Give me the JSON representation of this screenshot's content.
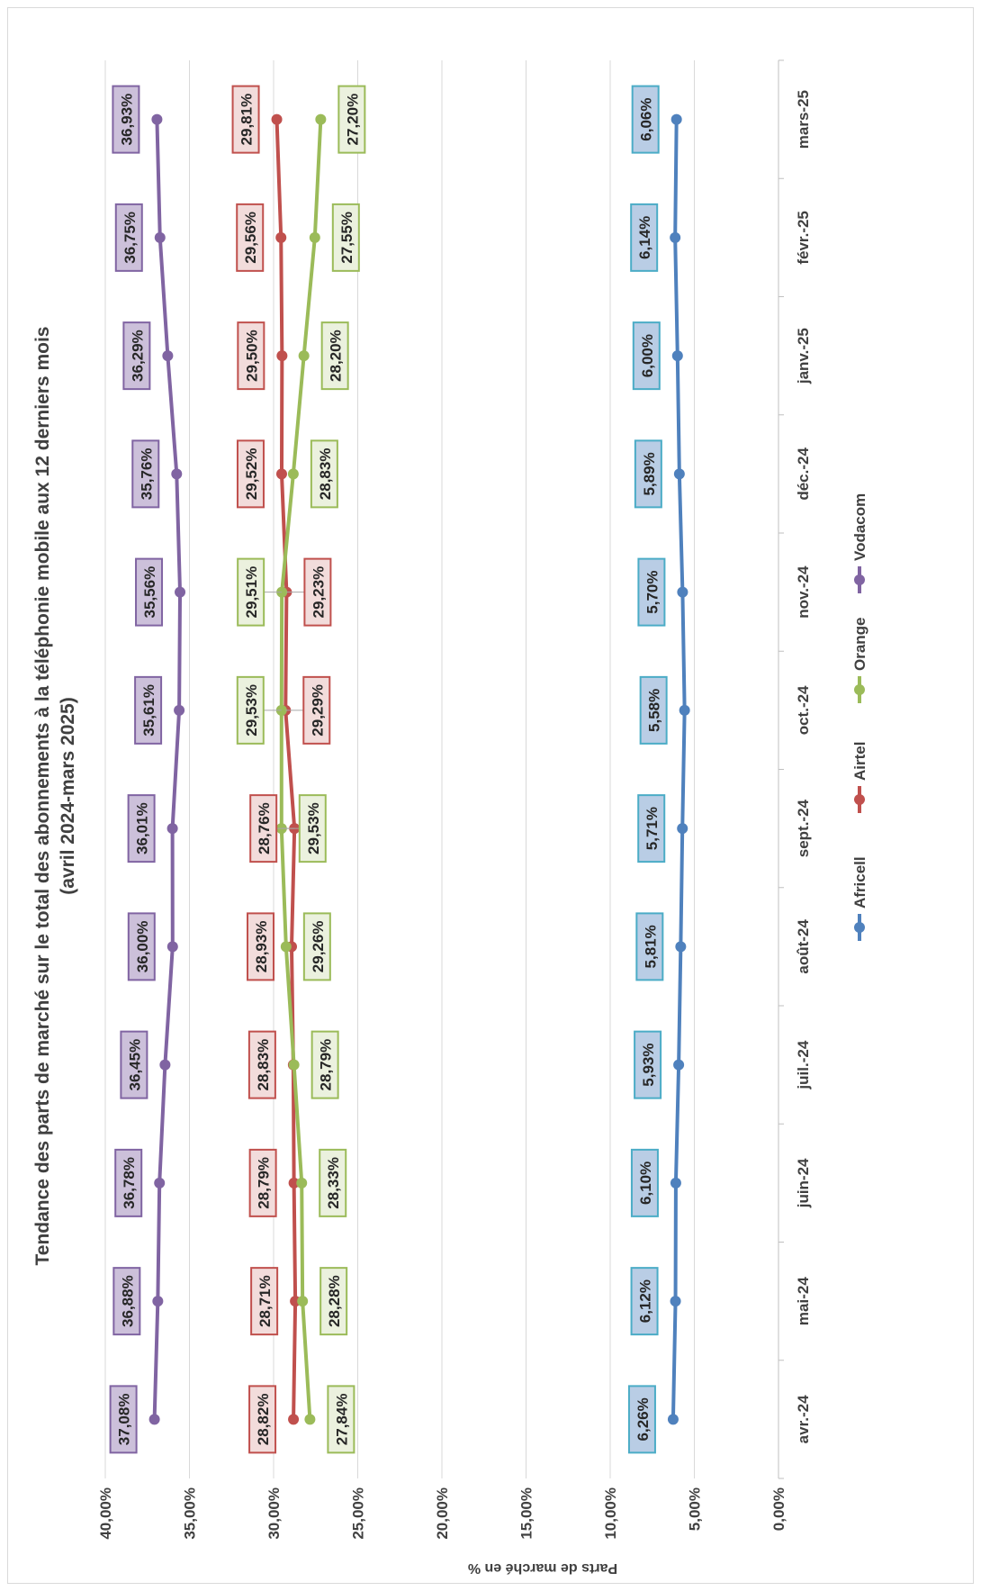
{
  "chart_data": {
    "type": "line",
    "title": "Tendance des parts de marché sur le total des abonnements à la téléphonie mobile aux 12 derniers mois",
    "subtitle": "(avril 2024-mars 2025)",
    "ylabel": "Parts de marché en %",
    "xlabel": "",
    "ylim": [
      0,
      40
    ],
    "y_ticks": [
      "0,00%",
      "5,00%",
      "10,00%",
      "15,00%",
      "20,00%",
      "25,00%",
      "30,00%",
      "35,00%",
      "40,00%"
    ],
    "grid": true,
    "legend": "bottom",
    "categories": [
      "avr.-24",
      "mai-24",
      "juin-24",
      "juil.-24",
      "août-24",
      "sept.-24",
      "oct.-24",
      "nov.-24",
      "déc.-24",
      "janv.-25",
      "févr.-25",
      "mars-25"
    ],
    "series": [
      {
        "name": "Africell",
        "color": "#4F81BD",
        "label_fill": "#B9CDE5",
        "label_border": "#4BACC6",
        "values": [
          6.26,
          6.12,
          6.1,
          5.93,
          5.81,
          5.71,
          5.58,
          5.7,
          5.89,
          6.0,
          6.14,
          6.06
        ],
        "labels": [
          "6,26%",
          "6,12%",
          "6,10%",
          "5,93%",
          "5,81%",
          "5,71%",
          "5,58%",
          "5,70%",
          "5,89%",
          "6,00%",
          "6,14%",
          "6,06%"
        ]
      },
      {
        "name": "Airtel",
        "color": "#C0504D",
        "label_fill": "#F2DCDB",
        "label_border": "#C0504D",
        "values": [
          28.82,
          28.71,
          28.79,
          28.83,
          28.93,
          28.76,
          29.29,
          29.23,
          29.52,
          29.5,
          29.56,
          29.81
        ],
        "labels": [
          "28,82%",
          "28,71%",
          "28,79%",
          "28,83%",
          "28,93%",
          "28,76%",
          "29,29%",
          "29,23%",
          "29,52%",
          "29,50%",
          "29,56%",
          "29,81%"
        ]
      },
      {
        "name": "Orange",
        "color": "#9BBB59",
        "label_fill": "#EBF1DE",
        "label_border": "#9BBB59",
        "values": [
          27.84,
          28.28,
          28.33,
          28.79,
          29.26,
          29.53,
          29.53,
          29.51,
          28.83,
          28.2,
          27.55,
          27.2
        ],
        "labels": [
          "27,84%",
          "28,28%",
          "28,33%",
          "28,79%",
          "29,26%",
          "29,53%",
          "29,53%",
          "29,51%",
          "28,83%",
          "28,20%",
          "27,55%",
          "27,20%"
        ]
      },
      {
        "name": "Vodacom",
        "color": "#8064A2",
        "label_fill": "#CCC0DA",
        "label_border": "#8064A2",
        "values": [
          37.08,
          36.88,
          36.78,
          36.45,
          36.0,
          36.01,
          35.61,
          35.56,
          35.76,
          36.29,
          36.75,
          36.93
        ],
        "labels": [
          "37,08%",
          "36,88%",
          "36,78%",
          "36,45%",
          "36,00%",
          "36,01%",
          "35,61%",
          "35,56%",
          "35,76%",
          "36,29%",
          "36,75%",
          "36,93%"
        ]
      }
    ]
  }
}
